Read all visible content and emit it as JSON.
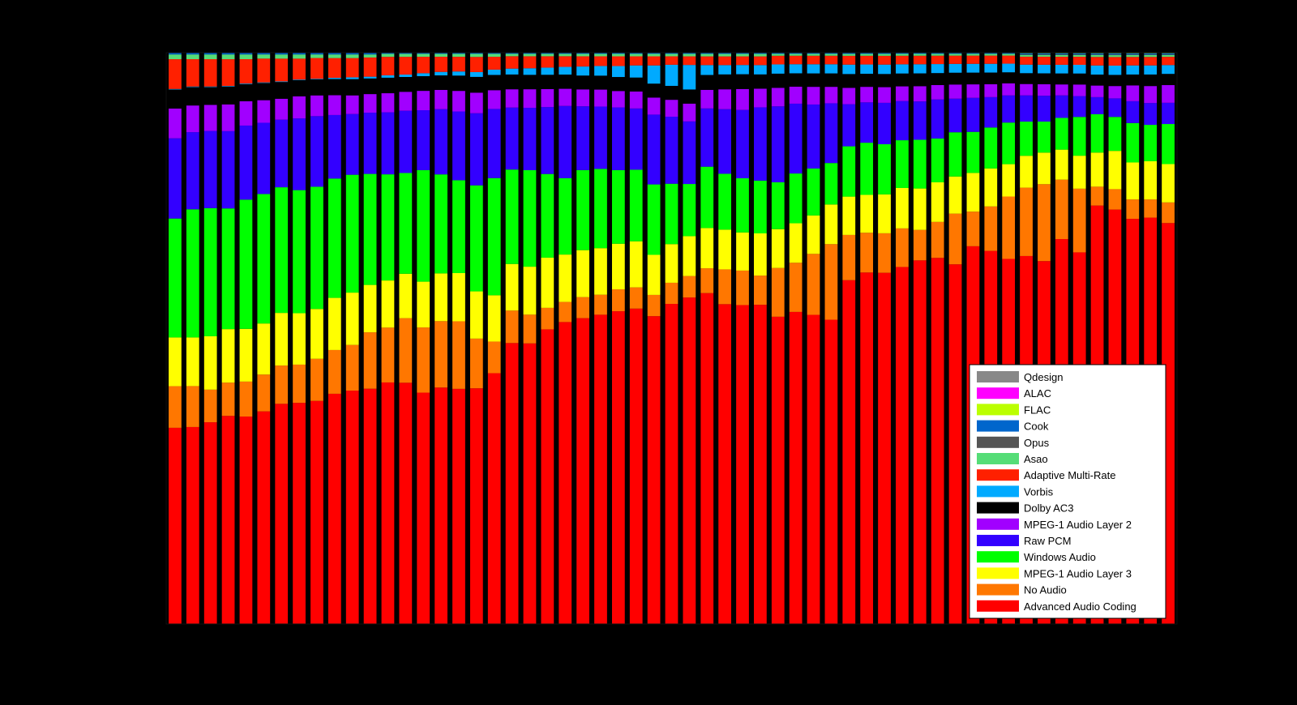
{
  "chart_data": {
    "type": "bar",
    "stacked": true,
    "title": "",
    "xlabel": "",
    "ylabel": "",
    "ylim": [
      0,
      100
    ],
    "x_tick_labels": [
      "",
      "",
      "",
      "",
      ""
    ],
    "y_tick_labels": [
      "",
      "",
      "",
      "",
      "",
      "",
      "",
      "",
      "",
      "",
      ""
    ],
    "legend_position": "bottom-right",
    "legend_order": [
      "Qdesign",
      "ALAC",
      "FLAC",
      "Cook",
      "Opus",
      "Asao",
      "Adaptive Multi-Rate",
      "Vorbis",
      "Dolby AC3",
      "MPEG-1 Audio Layer 2",
      "Raw PCM",
      "Windows Audio",
      "MPEG-1 Audio Layer 3",
      "No Audio",
      "Advanced Audio Coding"
    ],
    "categories": [
      "1",
      "2",
      "3",
      "4",
      "5",
      "6",
      "7",
      "8",
      "9",
      "10",
      "11",
      "12",
      "13",
      "14",
      "15",
      "16",
      "17",
      "18",
      "19",
      "20",
      "21",
      "22",
      "23",
      "24",
      "25",
      "26",
      "27",
      "28",
      "29",
      "30",
      "31",
      "32",
      "33",
      "34",
      "35",
      "36",
      "37",
      "38",
      "39",
      "40",
      "41",
      "42",
      "43",
      "44",
      "45",
      "46",
      "47",
      "48",
      "49",
      "50",
      "51",
      "52",
      "53",
      "54",
      "55",
      "56",
      "57"
    ],
    "series": [
      {
        "name": "Advanced Audio Coding",
        "color": "#ff0000",
        "values": [
          33.0,
          33.2,
          34.0,
          35.0,
          35.0,
          35.8,
          36.8,
          37.0,
          37.6,
          38.4,
          38.8,
          39.2,
          40.5,
          40.7,
          39.4,
          40.6,
          40.0,
          38.9,
          42.8,
          47.6,
          46.8,
          49.3,
          51.0,
          50.8,
          51.1,
          51.4,
          52.0,
          50.7,
          53.0,
          53.2,
          53.4,
          51.5,
          51.8,
          51.4,
          49.8,
          51.4,
          50.7,
          49.9,
          54.7,
          56.6,
          56.0,
          58.3,
          59.7,
          61.0,
          61.0,
          64.4,
          63.8,
          63.2,
          64.6,
          63.2,
          66.7,
          64.2,
          68.7,
          67.1,
          66.8,
          67.0,
          68.0
        ]
      },
      {
        "name": "No Audio",
        "color": "#ff7700",
        "values": [
          7.0,
          6.9,
          5.5,
          5.6,
          5.9,
          6.2,
          6.4,
          6.4,
          7.1,
          7.3,
          7.6,
          9.4,
          9.2,
          10.9,
          11.1,
          11.4,
          11.5,
          8.2,
          5.4,
          5.5,
          4.8,
          3.6,
          3.4,
          3.5,
          3.3,
          3.6,
          3.5,
          3.5,
          3.5,
          3.5,
          4.0,
          5.6,
          5.6,
          4.7,
          7.9,
          8.1,
          10.0,
          12.4,
          7.2,
          6.4,
          6.3,
          6.3,
          5.0,
          6.0,
          8.6,
          5.9,
          7.6,
          10.8,
          12.0,
          13.4,
          10.3,
          11.0,
          3.1,
          3.3,
          3.2,
          3.0,
          3.5
        ]
      },
      {
        "name": "MPEG-1 Audio Layer 3",
        "color": "#ffff00",
        "values": [
          8.2,
          8.2,
          9.0,
          9.0,
          8.9,
          8.6,
          8.8,
          8.6,
          8.4,
          8.7,
          8.7,
          7.9,
          7.9,
          7.5,
          7.8,
          8.2,
          8.2,
          7.8,
          7.9,
          7.9,
          8.0,
          8.4,
          8.0,
          7.8,
          7.7,
          7.5,
          7.6,
          6.6,
          6.4,
          6.5,
          6.5,
          6.4,
          6.2,
          6.8,
          6.3,
          6.5,
          6.3,
          6.5,
          6.1,
          6.1,
          6.2,
          6.6,
          6.8,
          6.6,
          6.3,
          6.6,
          6.5,
          5.6,
          5.6,
          5.5,
          5.2,
          5.7,
          5.6,
          6.2,
          6.1,
          6.3,
          6.5
        ]
      },
      {
        "name": "Windows Audio",
        "color": "#00ff00",
        "values": [
          20.0,
          21.6,
          21.6,
          20.3,
          21.8,
          21.8,
          21.0,
          20.6,
          20.6,
          19.9,
          19.6,
          18.5,
          17.8,
          17.0,
          19.0,
          17.0,
          15.8,
          17.5,
          20.0,
          16.0,
          16.1,
          14.0,
          12.9,
          13.3,
          13.1,
          12.1,
          11.8,
          11.6,
          10.0,
          8.5,
          9.9,
          9.0,
          8.8,
          8.5,
          7.6,
          8.2,
          7.7,
          6.8,
          8.0,
          8.4,
          8.0,
          7.8,
          8.0,
          7.3,
          7.5,
          7.0,
          7.0,
          7.2,
          6.0,
          5.4,
          5.5,
          6.7,
          6.3,
          5.5,
          6.5,
          6.0,
          6.8
        ]
      },
      {
        "name": "Raw PCM",
        "color": "#3300ff",
        "values": [
          13.5,
          13.0,
          13.0,
          13.0,
          12.5,
          12.0,
          11.3,
          12.0,
          11.9,
          10.6,
          10.1,
          10.2,
          10.4,
          10.5,
          10.2,
          11.2,
          11.7,
          11.9,
          11.8,
          10.5,
          10.4,
          11.2,
          12.2,
          10.6,
          10.3,
          10.3,
          10.1,
          11.5,
          11.1,
          10.2,
          9.4,
          10.4,
          11.1,
          11.8,
          12.3,
          11.5,
          10.5,
          9.8,
          6.7,
          6.5,
          6.6,
          6.4,
          6.3,
          6.5,
          5.7,
          5.8,
          5.2,
          4.7,
          4.6,
          4.5,
          3.9,
          3.6,
          2.8,
          3.0,
          3.6,
          3.6,
          3.6
        ]
      },
      {
        "name": "MPEG-1 Audio Layer 2",
        "color": "#a100ff",
        "values": [
          5.0,
          4.5,
          4.4,
          4.5,
          4.1,
          3.8,
          3.5,
          3.7,
          3.5,
          3.3,
          3.1,
          3.1,
          3.2,
          3.2,
          3.3,
          3.3,
          3.5,
          3.4,
          3.2,
          3.1,
          3.1,
          3.0,
          2.9,
          2.8,
          2.8,
          2.7,
          2.8,
          2.8,
          2.8,
          2.9,
          3.0,
          3.2,
          3.4,
          3.0,
          3.0,
          2.8,
          2.9,
          2.7,
          2.6,
          2.5,
          2.5,
          2.4,
          2.5,
          2.4,
          2.4,
          2.3,
          2.2,
          2.1,
          2.0,
          2.0,
          1.9,
          2.0,
          1.9,
          2.0,
          2.6,
          2.8,
          3.0
        ]
      },
      {
        "name": "Dolby AC3",
        "color": "#000000",
        "values": [
          3.2,
          3.1,
          3.0,
          3.0,
          2.9,
          2.9,
          2.8,
          2.7,
          2.7,
          2.7,
          2.7,
          2.6,
          2.6,
          2.5,
          2.5,
          2.5,
          2.6,
          2.6,
          2.6,
          2.5,
          2.4,
          2.4,
          2.4,
          2.3,
          2.3,
          2.3,
          2.3,
          2.3,
          2.3,
          2.3,
          2.4,
          2.4,
          2.4,
          2.3,
          2.3,
          2.2,
          2.2,
          2.2,
          2.2,
          2.1,
          2.1,
          2.1,
          2.1,
          2.0,
          2.0,
          2.0,
          2.0,
          1.9,
          1.9,
          1.9,
          1.9,
          1.9,
          1.8,
          1.8,
          1.8,
          1.9,
          1.9
        ]
      },
      {
        "name": "Vorbis",
        "color": "#00aaff",
        "values": [
          0.1,
          0.1,
          0.1,
          0.1,
          0.1,
          0.1,
          0.1,
          0.1,
          0.1,
          0.2,
          0.3,
          0.3,
          0.4,
          0.4,
          0.5,
          0.6,
          0.7,
          0.8,
          0.9,
          1.0,
          1.1,
          1.2,
          1.3,
          1.5,
          1.6,
          1.8,
          2.0,
          3.0,
          3.5,
          4.0,
          1.6,
          1.5,
          1.5,
          1.5,
          1.5,
          1.5,
          1.5,
          1.5,
          1.5,
          1.5,
          1.5,
          1.5,
          1.5,
          1.5,
          1.5,
          1.5,
          1.5,
          1.5,
          1.5,
          1.5,
          1.5,
          1.5,
          1.5,
          1.5,
          1.5,
          1.5,
          1.5
        ]
      },
      {
        "name": "Adaptive Multi-Rate",
        "color": "#ff2000",
        "values": [
          5.0,
          4.6,
          4.6,
          4.5,
          4.1,
          4.0,
          3.8,
          3.5,
          3.5,
          3.3,
          3.2,
          3.2,
          3.1,
          3.0,
          2.8,
          2.6,
          2.5,
          2.5,
          2.2,
          2.1,
          2.0,
          1.9,
          1.8,
          1.7,
          1.6,
          1.6,
          1.5,
          1.5,
          1.4,
          1.4,
          1.4,
          1.4,
          1.4,
          1.4,
          1.4,
          1.4,
          1.4,
          1.4,
          1.4,
          1.4,
          1.4,
          1.4,
          1.4,
          1.4,
          1.4,
          1.4,
          1.4,
          1.4,
          1.4,
          1.4,
          1.4,
          1.4,
          1.4,
          1.4,
          1.4,
          1.4,
          1.4
        ]
      },
      {
        "name": "Asao",
        "color": "#55dd77",
        "values": [
          0.8,
          0.8,
          0.8,
          0.8,
          0.8,
          0.7,
          0.7,
          0.7,
          0.6,
          0.6,
          0.6,
          0.5,
          0.5,
          0.5,
          0.5,
          0.5,
          0.5,
          0.5,
          0.5,
          0.4,
          0.4,
          0.4,
          0.4,
          0.4,
          0.4,
          0.4,
          0.4,
          0.4,
          0.4,
          0.4,
          0.4,
          0.4,
          0.4,
          0.4,
          0.3,
          0.3,
          0.3,
          0.3,
          0.3,
          0.3,
          0.3,
          0.3,
          0.3,
          0.3,
          0.3,
          0.3,
          0.3,
          0.3,
          0.3,
          0.3,
          0.3,
          0.3,
          0.3,
          0.3,
          0.3,
          0.3,
          0.3
        ]
      },
      {
        "name": "Opus",
        "color": "#555555",
        "values": [
          0,
          0,
          0,
          0,
          0,
          0,
          0,
          0,
          0,
          0,
          0,
          0,
          0,
          0,
          0,
          0,
          0,
          0,
          0,
          0,
          0,
          0,
          0,
          0,
          0,
          0,
          0,
          0,
          0,
          0,
          0,
          0,
          0,
          0,
          0,
          0,
          0,
          0,
          0,
          0,
          0,
          0,
          0,
          0,
          0,
          0,
          0,
          0,
          0.1,
          0.1,
          0.1,
          0.1,
          0.1,
          0.1,
          0.1,
          0.1,
          0.1
        ]
      },
      {
        "name": "Cook",
        "color": "#0066cc",
        "values": [
          0.3,
          0.3,
          0.3,
          0.3,
          0.3,
          0.3,
          0.3,
          0.3,
          0.3,
          0.3,
          0.3,
          0.3,
          0.2,
          0.2,
          0.2,
          0.2,
          0.2,
          0.2,
          0.2,
          0.2,
          0.2,
          0.2,
          0.2,
          0.2,
          0.2,
          0.2,
          0.2,
          0.2,
          0.2,
          0.2,
          0.2,
          0.2,
          0.2,
          0.2,
          0.2,
          0.2,
          0.2,
          0.2,
          0.2,
          0.2,
          0.2,
          0.2,
          0.2,
          0.2,
          0.2,
          0.2,
          0.2,
          0.2,
          0.2,
          0.2,
          0.2,
          0.2,
          0.2,
          0.2,
          0.2,
          0.2,
          0.2
        ]
      },
      {
        "name": "FLAC",
        "color": "#bbff00",
        "values": [
          0,
          0,
          0,
          0,
          0,
          0,
          0,
          0,
          0,
          0,
          0,
          0,
          0,
          0,
          0,
          0,
          0,
          0,
          0,
          0,
          0,
          0,
          0,
          0,
          0,
          0,
          0,
          0,
          0,
          0,
          0,
          0,
          0,
          0,
          0,
          0,
          0,
          0,
          0,
          0,
          0,
          0,
          0,
          0,
          0,
          0,
          0,
          0,
          0.1,
          0.1,
          0.1,
          0.1,
          0.1,
          0.1,
          0.1,
          0.1,
          0.1
        ]
      },
      {
        "name": "ALAC",
        "color": "#ff00ff",
        "values": [
          0,
          0,
          0,
          0,
          0,
          0,
          0,
          0,
          0,
          0,
          0,
          0,
          0,
          0,
          0,
          0,
          0,
          0,
          0,
          0,
          0,
          0,
          0,
          0,
          0,
          0,
          0,
          0,
          0,
          0,
          0,
          0,
          0,
          0,
          0,
          0,
          0,
          0,
          0,
          0,
          0,
          0,
          0,
          0,
          0,
          0,
          0,
          0,
          0,
          0,
          0,
          0,
          0,
          0,
          0,
          0,
          0
        ]
      },
      {
        "name": "Qdesign",
        "color": "#888888",
        "values": [
          0,
          0,
          0,
          0,
          0,
          0,
          0,
          0,
          0,
          0,
          0,
          0,
          0,
          0,
          0,
          0,
          0,
          0,
          0,
          0,
          0,
          0,
          0,
          0,
          0,
          0,
          0,
          0,
          0,
          0,
          0,
          0,
          0,
          0,
          0,
          0,
          0,
          0,
          0,
          0,
          0,
          0,
          0,
          0,
          0,
          0,
          0,
          0,
          0,
          0,
          0,
          0,
          0,
          0,
          0,
          0,
          0
        ]
      }
    ]
  }
}
